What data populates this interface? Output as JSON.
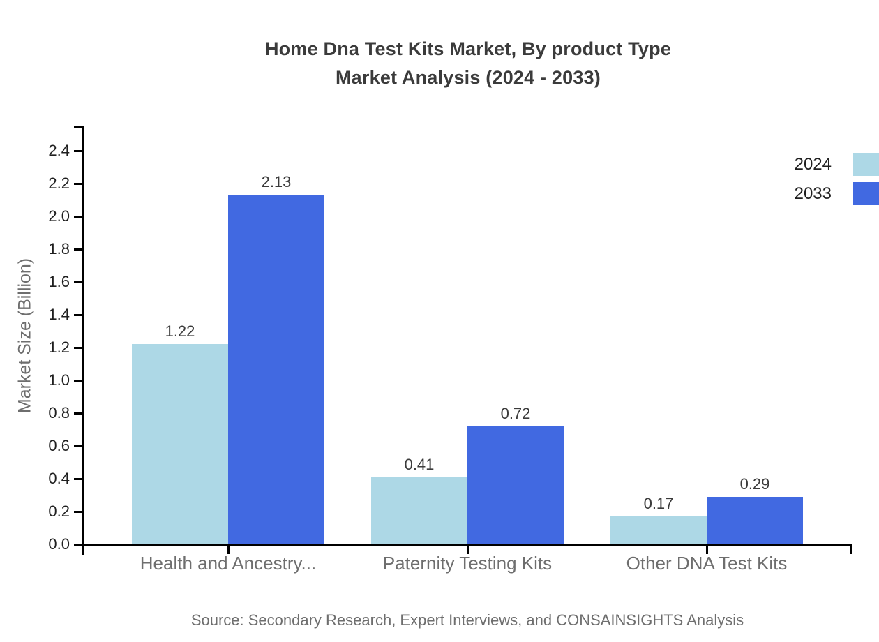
{
  "chart_data": {
    "type": "bar",
    "title": "Home Dna Test Kits Market, By product Type Market Analysis (2024 - 2033)",
    "title_line1": "Home Dna Test Kits Market, By product Type",
    "title_line2": "Market Analysis (2024 - 2033)",
    "xlabel": "",
    "ylabel": "Market Size (Billion)",
    "categories": [
      "Health and Ancestry...",
      "Paternity Testing Kits",
      "Other DNA Test Kits"
    ],
    "series": [
      {
        "name": "2024",
        "color": "#add8e6",
        "values": [
          1.22,
          0.41,
          0.17
        ]
      },
      {
        "name": "2033",
        "color": "#4169e1",
        "values": [
          2.13,
          0.72,
          0.29
        ]
      }
    ],
    "ylim": [
      0,
      2.55
    ],
    "y_tick_labels": [
      "0.0",
      "0.2",
      "0.4",
      "0.6",
      "0.8",
      "1.0",
      "1.2",
      "1.4",
      "1.6",
      "1.8",
      "2.0",
      "2.2",
      "2.4"
    ],
    "grid": false,
    "legend_position": "top-right",
    "value_labels_visible": true
  },
  "source_text": "Source: Secondary Research, Expert Interviews, and CONSAINSIGHTS Analysis",
  "theme": {
    "background": "#ffffff",
    "axis_color": "#000000",
    "tick_label_color": "#1f1f1f",
    "category_label_color": "#6e6e6e",
    "axis_title_color": "#6e6e6e",
    "title_color": "#3b3b3b",
    "value_label_color": "#3b3b3b",
    "legend_label_color": "#1f1f1f",
    "source_color": "#6e6e6e"
  }
}
